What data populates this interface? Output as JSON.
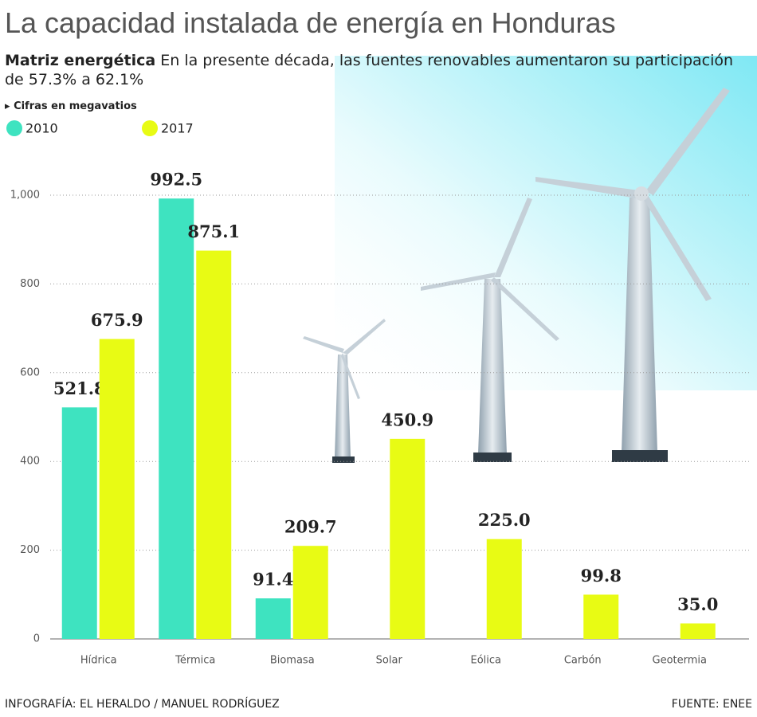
{
  "chart_data": {
    "type": "bar",
    "title": "La capacidad instalada de energía en Honduras",
    "subtitle_bold": "Matriz energética",
    "subtitle": "En la presente década, las fuentes renovables aumentaron su participación de 57.3% a 62.1%",
    "unit_note": "Cifras en megavatios",
    "categories": [
      "Hídrica",
      "Térmica",
      "Biomasa",
      "Solar",
      "Eólica",
      "Carbón",
      "Geotermia"
    ],
    "series": [
      {
        "name": "2010",
        "color": "#3ee3c0",
        "values": [
          521.8,
          992.5,
          91.4,
          null,
          null,
          null,
          null
        ],
        "value_labels": [
          "521.8",
          "992.5",
          "91.4",
          null,
          null,
          null,
          null
        ]
      },
      {
        "name": "2017",
        "color": "#e8fb14",
        "values": [
          675.9,
          875.1,
          209.7,
          450.9,
          225.0,
          99.8,
          35.0
        ],
        "value_labels": [
          "675.9",
          "875.1",
          "209.7",
          "450.9",
          "225.0",
          "99.8",
          "35.0"
        ]
      }
    ],
    "ylim": [
      0,
      1000
    ],
    "yticks": [
      0,
      200,
      400,
      600,
      800,
      {
        "value": 1000,
        "label": "1,000"
      }
    ],
    "grid": true,
    "footer_left": "INFOGRAFÍA: EL HERALDO / MANUEL RODRÍGUEZ",
    "footer_right": "FUENTE: ENEE"
  }
}
